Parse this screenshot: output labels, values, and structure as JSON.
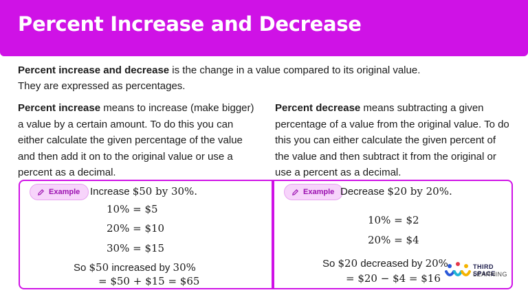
{
  "header": {
    "title": "Percent Increase and Decrease"
  },
  "intro": {
    "bold": "Percent increase and decrease",
    "rest": " is the change in a value compared to its original value.",
    "line2": "They are expressed as percentages."
  },
  "left_col": {
    "bold": "Percent increase",
    "rest": " means to increase (make bigger) a value by a certain amount. To do this you can either calculate the given percentage of the value and then add it on to the original value or use a percent as a decimal."
  },
  "right_col": {
    "bold": "Percent decrease",
    "rest": " means subtracting a given percentage of a value from the original value. To do this you can either calculate the given percent of the value and then subtract it from the original or use a percent as a decimal."
  },
  "example_left": {
    "badge": "Example",
    "task_word": "Increase ",
    "task_math": "$50 by 30%.",
    "l1": "10% = $5",
    "l2": "20% = $10",
    "l3": "30% = $15",
    "conclusion_word": "So ",
    "conclusion_a": "$50",
    "conclusion_b": " increased by ",
    "conclusion_c": "30%",
    "result": "= $50 + $15 = $65"
  },
  "example_right": {
    "badge": "Example",
    "task_word": "Decrease ",
    "task_math": "$20 by 20%.",
    "l1": "10% = $2",
    "l2": "20% = $4",
    "conclusion_word": "So ",
    "conclusion_a": "$20",
    "conclusion_b": " decreased by ",
    "conclusion_c": "20%",
    "result": "= $20 − $4 = $16"
  },
  "logo": {
    "line1": "THIRD SPACE",
    "line2": "LEARNING"
  },
  "colors": {
    "accent": "#cf12e6",
    "badge_bg": "#f7d4fb"
  }
}
